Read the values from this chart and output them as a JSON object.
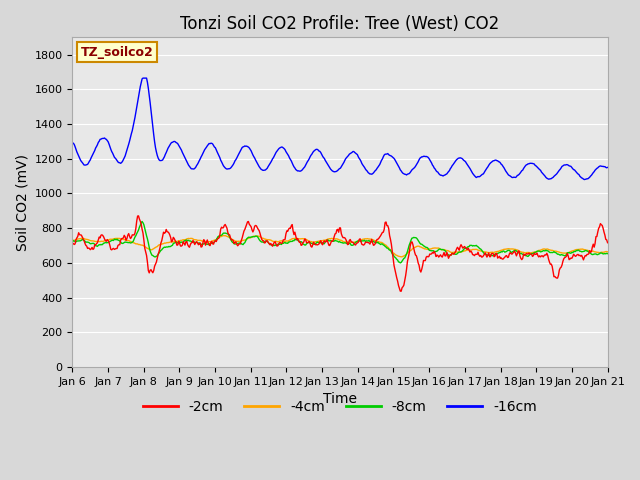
{
  "title": "Tonzi Soil CO2 Profile: Tree (West) CO2",
  "xlabel": "Time",
  "ylabel": "Soil CO2 (mV)",
  "ylim": [
    0,
    1900
  ],
  "yticks": [
    0,
    200,
    400,
    600,
    800,
    1000,
    1200,
    1400,
    1600,
    1800
  ],
  "fig_bg_color": "#d8d8d8",
  "plot_bg_color": "#e8e8e8",
  "grid_color": "#ffffff",
  "legend_entries": [
    "-2cm",
    "-4cm",
    "-8cm",
    "-16cm"
  ],
  "legend_colors": [
    "#ff0000",
    "#ffa500",
    "#00cc00",
    "#0000ff"
  ],
  "box_label": "TZ_soilco2",
  "box_facecolor": "#ffffcc",
  "box_edgecolor": "#cc8800",
  "box_textcolor": "#8b0000",
  "title_fontsize": 12,
  "axis_label_fontsize": 10,
  "tick_fontsize": 8,
  "legend_fontsize": 10,
  "x_start": 6,
  "x_end": 21,
  "xtick_positions": [
    6,
    7,
    8,
    9,
    10,
    11,
    12,
    13,
    14,
    15,
    16,
    17,
    18,
    19,
    20,
    21
  ],
  "xtick_labels": [
    "Jan 6",
    "Jan 7",
    "Jan 8",
    "Jan 9",
    "Jan 10",
    "Jan 11",
    "Jan 12",
    "Jan 13",
    "Jan 14",
    "Jan 15",
    "Jan 16",
    "Jan 17",
    "Jan 18",
    "Jan 19",
    "Jan 20",
    "Jan 21"
  ]
}
